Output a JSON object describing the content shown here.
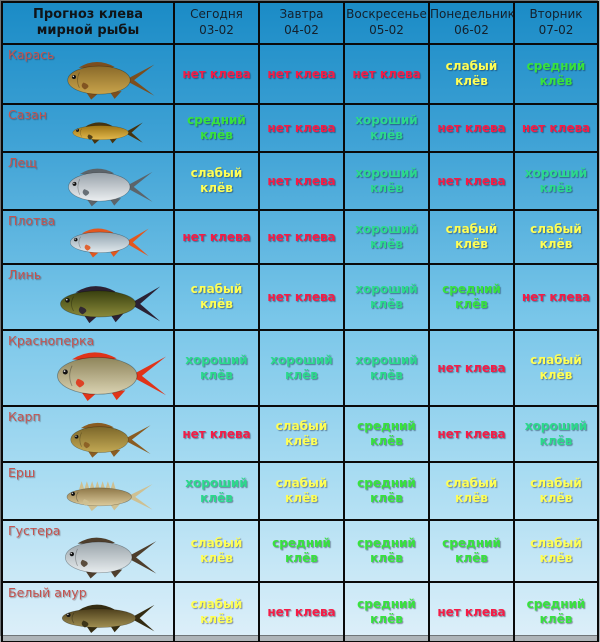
{
  "table": {
    "corner_header": "Прогноз клева мирной рыбы",
    "day_columns": [
      {
        "day": "Сегодня",
        "date": "03-02"
      },
      {
        "day": "Завтра",
        "date": "04-02"
      },
      {
        "day": "Воскресенье",
        "date": "05-02"
      },
      {
        "day": "Понедельник",
        "date": "06-02"
      },
      {
        "day": "Вторник",
        "date": "07-02"
      }
    ],
    "levels": {
      "none": {
        "label": "нет клева",
        "color": "#f51c46"
      },
      "weak": {
        "label": "слабый клёв",
        "color": "#ffff55"
      },
      "medium": {
        "label": "средний клёв",
        "color": "#38e23d"
      },
      "good": {
        "label": "хороший клёв",
        "color": "#2cd98c"
      }
    },
    "rows": [
      {
        "fish": "Карась",
        "shape": "round",
        "colors": {
          "back": "#8a6a2a",
          "belly": "#c9a44b",
          "fins": "#7c4e1e"
        },
        "forecast": [
          "none",
          "none",
          "none",
          "weak",
          "medium"
        ]
      },
      {
        "fish": "Сазан",
        "shape": "long",
        "colors": {
          "back": "#9c7415",
          "belly": "#e3b94d",
          "fins": "#463410"
        },
        "forecast": [
          "medium",
          "none",
          "good",
          "none",
          "none"
        ]
      },
      {
        "fish": "Лещ",
        "shape": "tall",
        "colors": {
          "back": "#98a2aa",
          "belly": "#eceff1",
          "fins": "#5c646a"
        },
        "forecast": [
          "weak",
          "none",
          "good",
          "none",
          "good"
        ]
      },
      {
        "fish": "Плотва",
        "shape": "medium",
        "colors": {
          "back": "#8fa2ae",
          "belly": "#e2e9ed",
          "fins": "#e2571f"
        },
        "forecast": [
          "none",
          "none",
          "good",
          "weak",
          "weak"
        ]
      },
      {
        "fish": "Линь",
        "shape": "medium",
        "colors": {
          "back": "#39400f",
          "belly": "#8a8a3a",
          "fins": "#2b2133"
        },
        "forecast": [
          "weak",
          "none",
          "good",
          "medium",
          "none"
        ]
      },
      {
        "fish": "Красноперка",
        "shape": "tall",
        "colors": {
          "back": "#8f855b",
          "belly": "#d9d2b2",
          "fins": "#e03419"
        },
        "forecast": [
          "good",
          "good",
          "good",
          "none",
          "weak"
        ]
      },
      {
        "fish": "Карп",
        "shape": "round",
        "colors": {
          "back": "#7c672a",
          "belly": "#c3a954",
          "fins": "#8a5c22"
        },
        "forecast": [
          "none",
          "weak",
          "medium",
          "none",
          "good"
        ]
      },
      {
        "fish": "Ерш",
        "shape": "spiky",
        "colors": {
          "back": "#8e7747",
          "belly": "#dccb9d",
          "fins": "#cec092"
        },
        "forecast": [
          "good",
          "weak",
          "medium",
          "weak",
          "weak"
        ]
      },
      {
        "fish": "Густера",
        "shape": "tall",
        "colors": {
          "back": "#9aa4aa",
          "belly": "#e7ecee",
          "fins": "#4e3e2c"
        },
        "forecast": [
          "weak",
          "medium",
          "medium",
          "medium",
          "weak"
        ]
      },
      {
        "fish": "Белый амур",
        "shape": "long",
        "colors": {
          "back": "#4d3f1c",
          "belly": "#a08f52",
          "fins": "#342c12"
        },
        "forecast": [
          "weak",
          "none",
          "medium",
          "none",
          "medium"
        ]
      }
    ]
  },
  "colors": {
    "bg_gradient_top": "#1a8bc6",
    "bg_gradient_bottom": "#dceff9",
    "grid_border": "#0a0a0a",
    "header_text": "#14202c",
    "fish_label": "#c4534f",
    "page_edge": "#aeb4b8"
  },
  "chart_data": {
    "type": "table",
    "title": "Прогноз клева мирной рыбы",
    "columns": [
      "Сегодня 03-02",
      "Завтра 04-02",
      "Воскресенье 05-02",
      "Понедельник 06-02",
      "Вторник 07-02"
    ],
    "rows": [
      {
        "fish": "Карась",
        "values": [
          "нет клева",
          "нет клева",
          "нет клева",
          "слабый клёв",
          "средний клёв"
        ]
      },
      {
        "fish": "Сазан",
        "values": [
          "средний клёв",
          "нет клева",
          "хороший клёв",
          "нет клева",
          "нет клева"
        ]
      },
      {
        "fish": "Лещ",
        "values": [
          "слабый клёв",
          "нет клева",
          "хороший клёв",
          "нет клева",
          "хороший клёв"
        ]
      },
      {
        "fish": "Плотва",
        "values": [
          "нет клева",
          "нет клева",
          "хороший клёв",
          "слабый клёв",
          "слабый клёв"
        ]
      },
      {
        "fish": "Линь",
        "values": [
          "слабый клёв",
          "нет клева",
          "хороший клёв",
          "средний клёв",
          "нет клева"
        ]
      },
      {
        "fish": "Красноперка",
        "values": [
          "хороший клёв",
          "хороший клёв",
          "хороший клёв",
          "нет клева",
          "слабый клёв"
        ]
      },
      {
        "fish": "Карп",
        "values": [
          "нет клева",
          "слабый клёв",
          "средний клёв",
          "нет клева",
          "хороший клёв"
        ]
      },
      {
        "fish": "Ерш",
        "values": [
          "хороший клёв",
          "слабый клёв",
          "средний клёв",
          "слабый клёв",
          "слабый клёв"
        ]
      },
      {
        "fish": "Густера",
        "values": [
          "слабый клёв",
          "средний клёв",
          "средний клёв",
          "средний клёв",
          "слабый клёв"
        ]
      },
      {
        "fish": "Белый амур",
        "values": [
          "слабый клёв",
          "нет клева",
          "средний клёв",
          "нет клева",
          "средний клёв"
        ]
      }
    ],
    "value_colors": {
      "нет клева": "#f51c46",
      "слабый клёв": "#ffff55",
      "средний клёв": "#38e23d",
      "хороший клёв": "#2cd98c"
    }
  }
}
